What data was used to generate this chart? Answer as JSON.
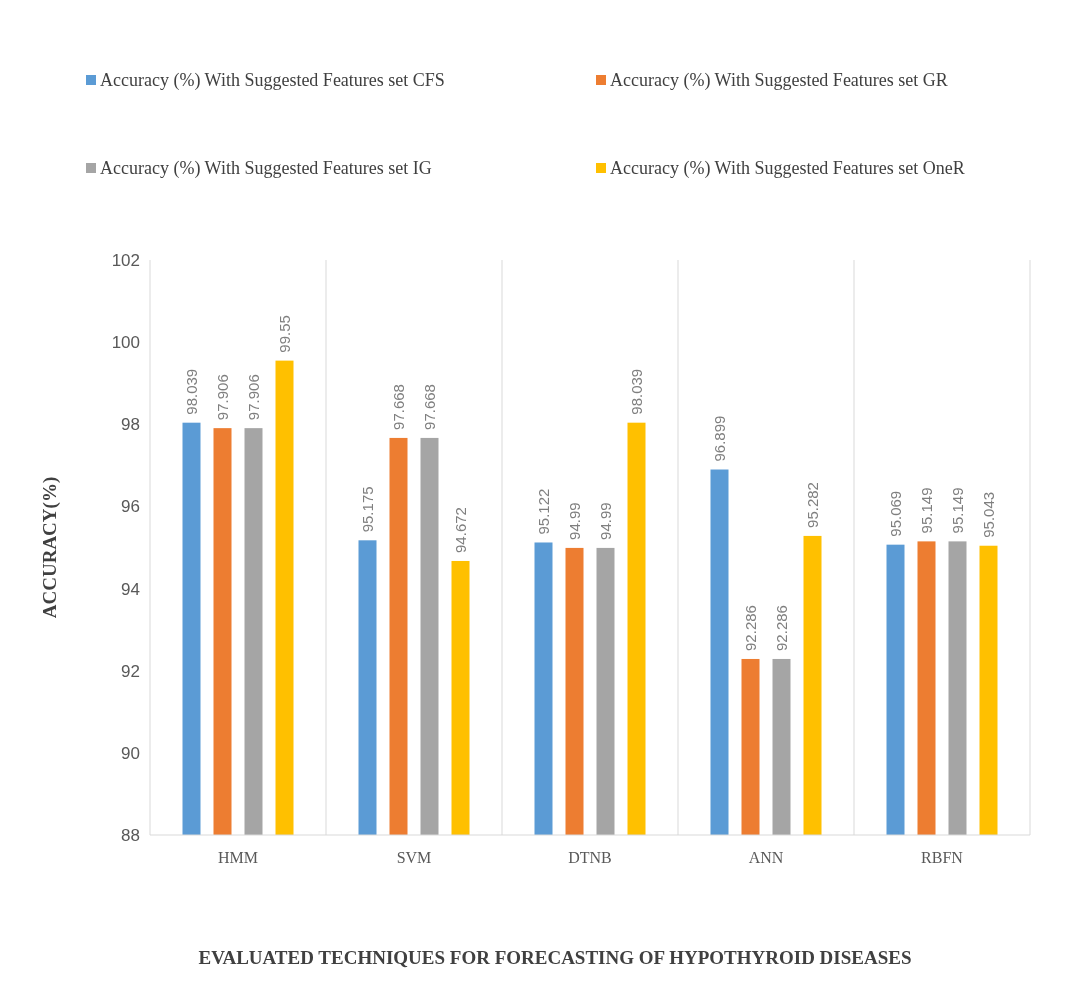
{
  "chart_data": {
    "type": "bar",
    "xlabel": "EVALUATED TECHNIQUES FOR FORECASTING OF HYPOTHYROID DISEASES",
    "ylabel": "ACCURACY(%)",
    "categories": [
      "HMM",
      "SVM",
      "DTNB",
      "ANN",
      "RBFN"
    ],
    "series": [
      {
        "name": "Accuracy (%) With Suggested Features set CFS",
        "color": "#5b9bd5",
        "values": [
          98.039,
          95.175,
          95.122,
          96.899,
          95.069
        ]
      },
      {
        "name": "Accuracy (%) With Suggested Features set GR",
        "color": "#ed7d31",
        "values": [
          97.906,
          97.668,
          94.99,
          92.286,
          95.149
        ]
      },
      {
        "name": "Accuracy (%) With Suggested Features set IG",
        "color": "#a5a5a5",
        "values": [
          97.906,
          97.668,
          94.99,
          92.286,
          95.149
        ]
      },
      {
        "name": "Accuracy (%) With Suggested Features set OneR",
        "color": "#ffc000",
        "values": [
          99.55,
          94.672,
          98.039,
          95.282,
          95.043
        ]
      }
    ],
    "ylim": [
      88,
      102
    ],
    "yticks": [
      88,
      90,
      92,
      94,
      96,
      98,
      100,
      102
    ],
    "grid": "x",
    "legend": "top",
    "data_labels": true
  }
}
